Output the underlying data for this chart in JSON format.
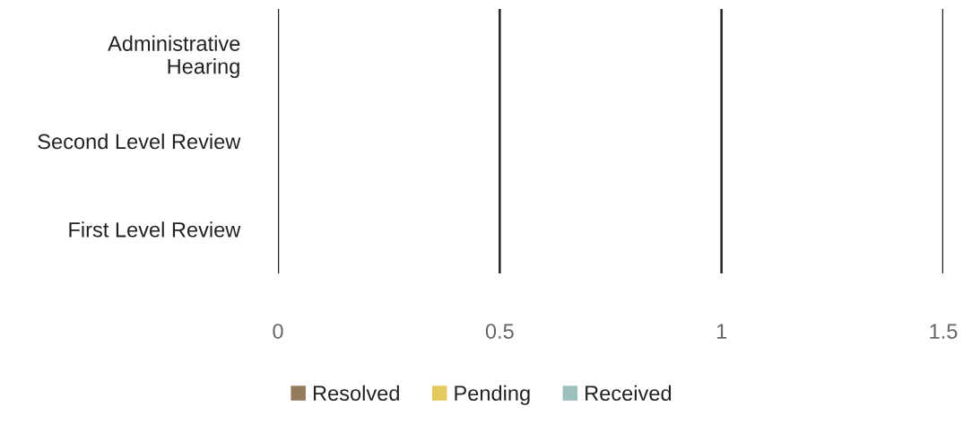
{
  "chart_data": {
    "type": "bar",
    "orientation": "horizontal",
    "categories": [
      "Administrative\nHearing",
      "Second Level Review",
      "First Level Review"
    ],
    "series": [
      {
        "name": "Resolved",
        "color": "#957b5d",
        "values": [
          0,
          0,
          0
        ]
      },
      {
        "name": "Pending",
        "color": "#e4c95c",
        "values": [
          0,
          0,
          0
        ]
      },
      {
        "name": "Received",
        "color": "#9dc0bd",
        "values": [
          0,
          0,
          0
        ]
      }
    ],
    "xlim": [
      0,
      1.5
    ],
    "xticks": [
      0,
      0.5,
      1,
      1.5
    ],
    "grid": "x",
    "legend": "bottom"
  }
}
